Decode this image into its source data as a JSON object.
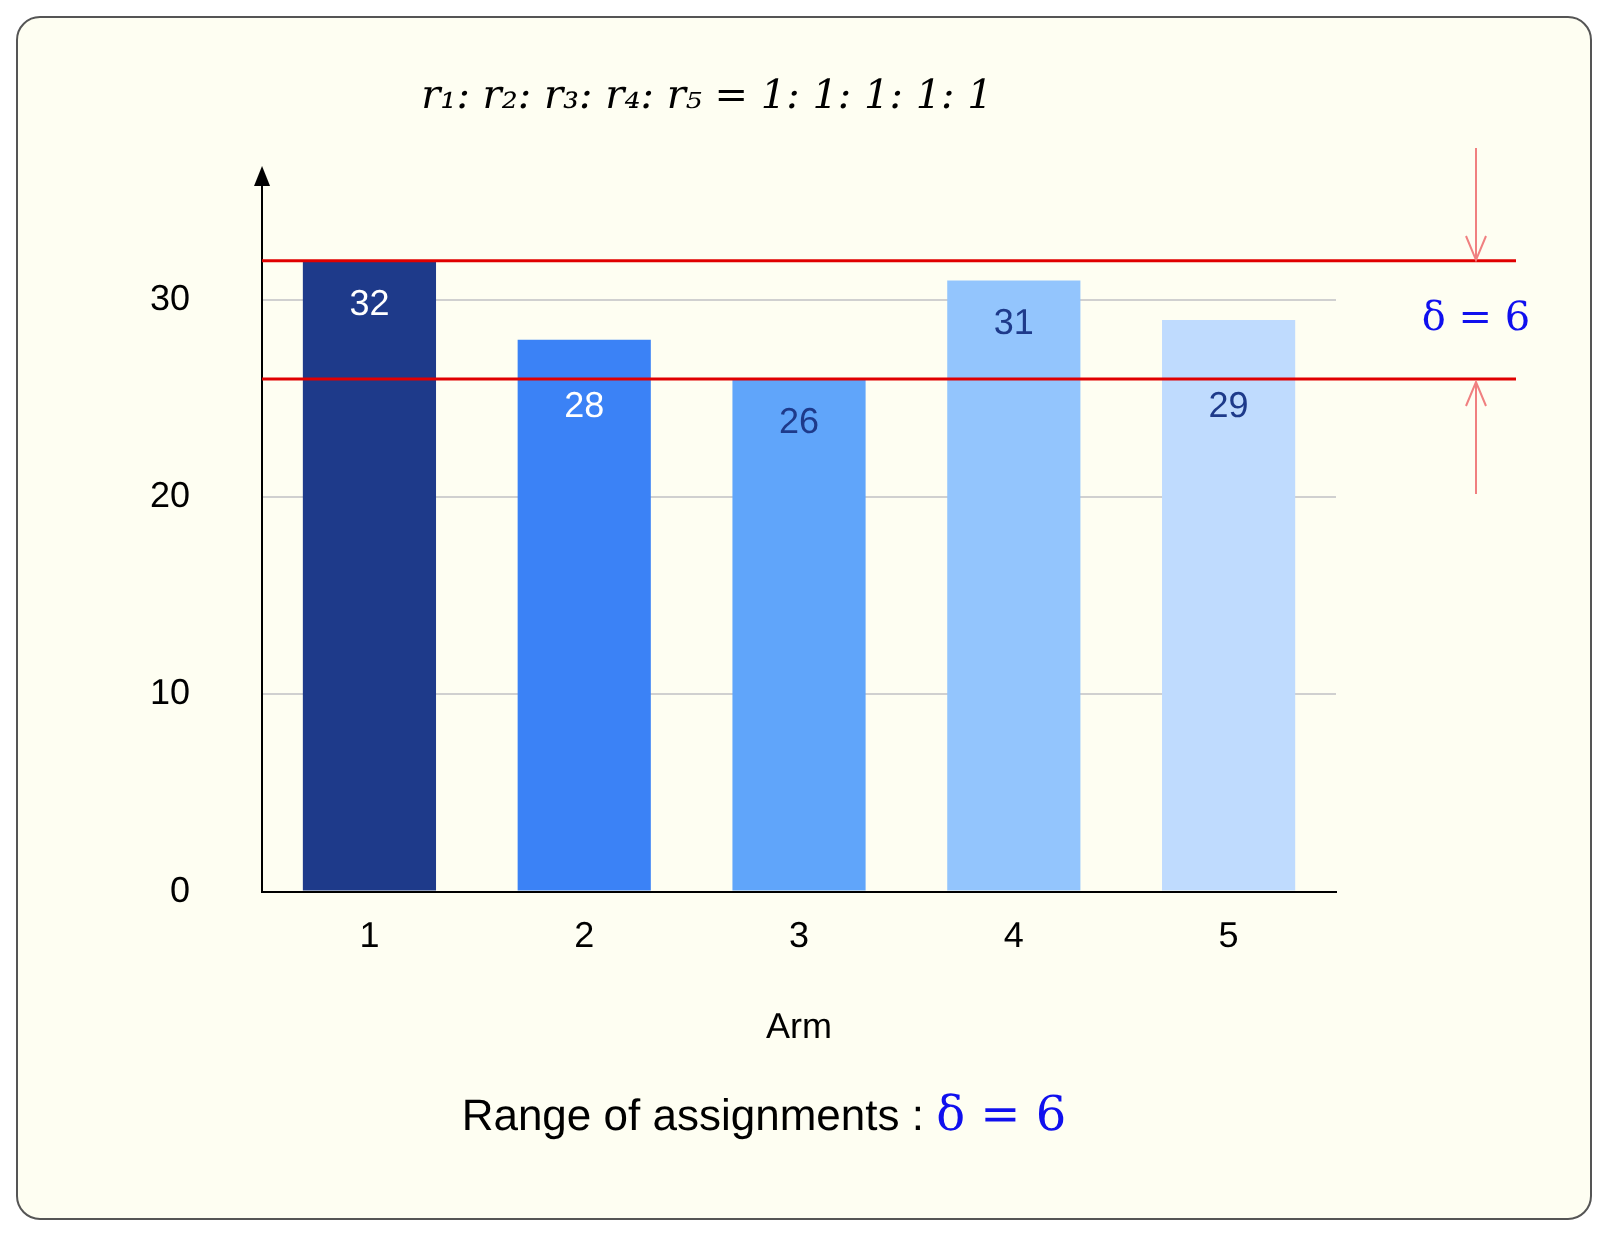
{
  "chart_data": {
    "type": "bar",
    "title": "r₁: r₂: r₃: r₄: r₅ = 1: 1: 1: 1: 1",
    "xlabel": "Arm",
    "categories": [
      "1",
      "2",
      "3",
      "4",
      "5"
    ],
    "values": [
      32,
      28,
      26,
      31,
      29
    ],
    "colors": [
      "#1e3a8a",
      "#3b82f6",
      "#60a5fa",
      "#93c5fd",
      "#bfdbfe"
    ],
    "ylim": [
      0,
      36
    ],
    "yticks": [
      0,
      10,
      20,
      30
    ],
    "grid": "y",
    "legend": false,
    "data_labels": true,
    "ref_lines": [
      {
        "axis": "y",
        "value": 32,
        "color": "#e00000"
      },
      {
        "axis": "y",
        "value": 26,
        "color": "#e00000"
      }
    ],
    "annotations": [
      "δ = 6",
      "Range of assignments : δ = 6"
    ]
  }
}
